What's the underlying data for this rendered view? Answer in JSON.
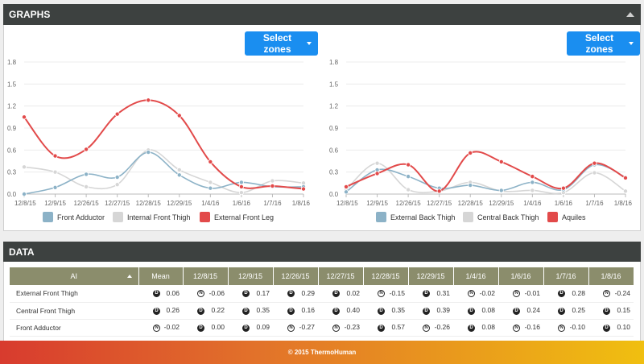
{
  "graphs_panel": {
    "title": "GRAPHS"
  },
  "data_panel": {
    "title": "DATA"
  },
  "footer": {
    "text": "© 2015 ThermoHuman"
  },
  "select_zones_label": "Select zones",
  "chart_data": [
    {
      "type": "line",
      "categories": [
        "12/8/15",
        "12/9/15",
        "12/26/15",
        "12/27/15",
        "12/28/15",
        "12/29/15",
        "1/4/16",
        "1/6/16",
        "1/7/16",
        "1/8/16"
      ],
      "y_ticks": [
        "0.0",
        "0.3",
        "0.6",
        "0.9",
        "1.2",
        "1.5",
        "1.8"
      ],
      "ylim": [
        0,
        1.8
      ],
      "legend_position": "bottom",
      "series": [
        {
          "name": "Front Adductor",
          "color": "#8cb2c7",
          "values": [
            0.0,
            0.09,
            0.27,
            0.23,
            0.57,
            0.26,
            0.08,
            0.16,
            0.1,
            0.1
          ]
        },
        {
          "name": "Internal Front Thigh",
          "color": "#d6d6d6",
          "values": [
            0.37,
            0.3,
            0.1,
            0.13,
            0.6,
            0.33,
            0.16,
            0.02,
            0.18,
            0.15
          ]
        },
        {
          "name": "External Front Leg",
          "color": "#e24a4a",
          "values": [
            1.05,
            0.52,
            0.61,
            1.09,
            1.28,
            1.07,
            0.44,
            0.1,
            0.11,
            0.07
          ]
        }
      ]
    },
    {
      "type": "line",
      "categories": [
        "12/8/15",
        "12/9/15",
        "12/26/15",
        "12/27/15",
        "12/28/15",
        "12/29/15",
        "1/4/16",
        "1/6/16",
        "1/7/16",
        "1/8/16"
      ],
      "y_ticks": [
        "0.0",
        "0.3",
        "0.6",
        "0.9",
        "1.2",
        "1.5",
        "1.8"
      ],
      "ylim": [
        0,
        1.8
      ],
      "legend_position": "bottom",
      "series": [
        {
          "name": "External Back Thigh",
          "color": "#8cb2c7",
          "values": [
            0.03,
            0.33,
            0.24,
            0.08,
            0.12,
            0.05,
            0.16,
            0.06,
            0.4,
            0.23
          ]
        },
        {
          "name": "Central Back Thigh",
          "color": "#d6d6d6",
          "values": [
            0.06,
            0.42,
            0.06,
            0.04,
            0.16,
            0.04,
            0.05,
            0.02,
            0.29,
            0.04
          ]
        },
        {
          "name": "Aquiles",
          "color": "#e24a4a",
          "values": [
            0.1,
            0.28,
            0.4,
            0.04,
            0.56,
            0.44,
            0.24,
            0.08,
            0.42,
            0.22
          ]
        }
      ]
    }
  ],
  "table": {
    "header_first": "AI",
    "columns": [
      "Mean",
      "12/8/15",
      "12/9/15",
      "12/26/15",
      "12/27/15",
      "12/28/15",
      "12/29/15",
      "1/4/16",
      "1/6/16",
      "1/7/16",
      "1/8/16"
    ],
    "rows": [
      {
        "label": "External Front Thigh",
        "cells": [
          [
            "D",
            "0.06"
          ],
          [
            "N",
            "-0.06"
          ],
          [
            "D",
            "0.17"
          ],
          [
            "D",
            "0.29"
          ],
          [
            "D",
            "0.02"
          ],
          [
            "N",
            "-0.15"
          ],
          [
            "D",
            "0.31"
          ],
          [
            "N",
            "-0.02"
          ],
          [
            "N",
            "-0.01"
          ],
          [
            "D",
            "0.28"
          ],
          [
            "N",
            "-0.24"
          ]
        ]
      },
      {
        "label": "Central Front Thigh",
        "cells": [
          [
            "D",
            "0.26"
          ],
          [
            "D",
            "0.22"
          ],
          [
            "D",
            "0.35"
          ],
          [
            "D",
            "0.16"
          ],
          [
            "D",
            "0.40"
          ],
          [
            "D",
            "0.35"
          ],
          [
            "D",
            "0.39"
          ],
          [
            "D",
            "0.08"
          ],
          [
            "D",
            "0.24"
          ],
          [
            "D",
            "0.25"
          ],
          [
            "D",
            "0.15"
          ]
        ]
      },
      {
        "label": "Front Adductor",
        "cells": [
          [
            "N",
            "-0.02"
          ],
          [
            "D",
            "0.00"
          ],
          [
            "D",
            "0.09"
          ],
          [
            "N",
            "-0.27"
          ],
          [
            "N",
            "-0.23"
          ],
          [
            "D",
            "0.57"
          ],
          [
            "N",
            "-0.26"
          ],
          [
            "D",
            "0.08"
          ],
          [
            "N",
            "-0.16"
          ],
          [
            "N",
            "-0.10"
          ],
          [
            "D",
            "0.10"
          ]
        ]
      }
    ]
  }
}
